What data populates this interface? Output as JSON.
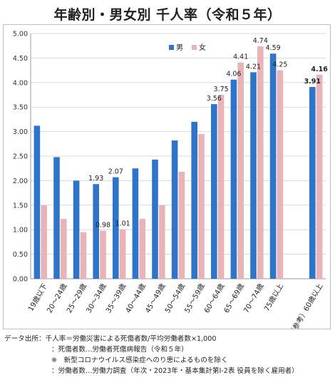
{
  "chart_data": {
    "type": "bar",
    "title": "年齢別・男女別 千人率（令和５年）",
    "categories": [
      "19歳以下",
      "20～24歳",
      "25～29歳",
      "30～34歳",
      "35～39歳",
      "40～44歳",
      "45～49歳",
      "50～54歳",
      "55～59歳",
      "60～64歳",
      "65～69歳",
      "70～74歳",
      "75歳以上",
      "",
      "（参考）60歳以上"
    ],
    "series": [
      {
        "name": "男",
        "color": "#2e74c9",
        "values": [
          3.12,
          2.48,
          2.0,
          1.93,
          2.07,
          2.25,
          2.43,
          2.82,
          3.2,
          3.56,
          4.06,
          4.21,
          4.59,
          null,
          3.91
        ]
      },
      {
        "name": "女",
        "color": "#e8b4b8",
        "values": [
          1.5,
          1.22,
          0.95,
          0.98,
          1.01,
          1.22,
          1.5,
          2.18,
          2.95,
          3.75,
          4.41,
          4.74,
          4.25,
          null,
          4.16
        ]
      }
    ],
    "data_labels": [
      {
        "series": 0,
        "index": 3,
        "text": "1.93"
      },
      {
        "series": 0,
        "index": 4,
        "text": "2.07"
      },
      {
        "series": 1,
        "index": 3,
        "text": "0.98"
      },
      {
        "series": 1,
        "index": 4,
        "text": "1.01"
      },
      {
        "series": 0,
        "index": 9,
        "text": "3.56"
      },
      {
        "series": 1,
        "index": 9,
        "text": "3.75"
      },
      {
        "series": 0,
        "index": 10,
        "text": "4.06"
      },
      {
        "series": 1,
        "index": 10,
        "text": "4.41"
      },
      {
        "series": 0,
        "index": 11,
        "text": "4.21"
      },
      {
        "series": 1,
        "index": 11,
        "text": "4.74"
      },
      {
        "series": 0,
        "index": 12,
        "text": "4.59"
      },
      {
        "series": 1,
        "index": 12,
        "text": "4.25"
      },
      {
        "series": 0,
        "index": 14,
        "text": "3.91",
        "bold": true
      },
      {
        "series": 1,
        "index": 14,
        "text": "4.16",
        "bold": true
      }
    ],
    "ylim": [
      0,
      5
    ],
    "yticks": [
      "0.00",
      "0.50",
      "1.00",
      "1.50",
      "2.00",
      "2.50",
      "3.00",
      "3.50",
      "4.00",
      "4.50",
      "5.00"
    ],
    "grid": true,
    "legend_position": "top-right",
    "xlabel": "",
    "ylabel": ""
  },
  "notes": {
    "label": "データ出所：",
    "line1": "千人率＝労働災害による死傷者数/平均労働者数×1,000",
    "line2": "：死傷者数…労働者死傷病報告（令和５年）",
    "line3": "※　新型コロナウイルス感染症へのり患によるものを除く",
    "line4": "：労働者数…労働力調査（年次・2023年・基本集計第Ⅰ-2表 役員を除く雇用者）"
  }
}
